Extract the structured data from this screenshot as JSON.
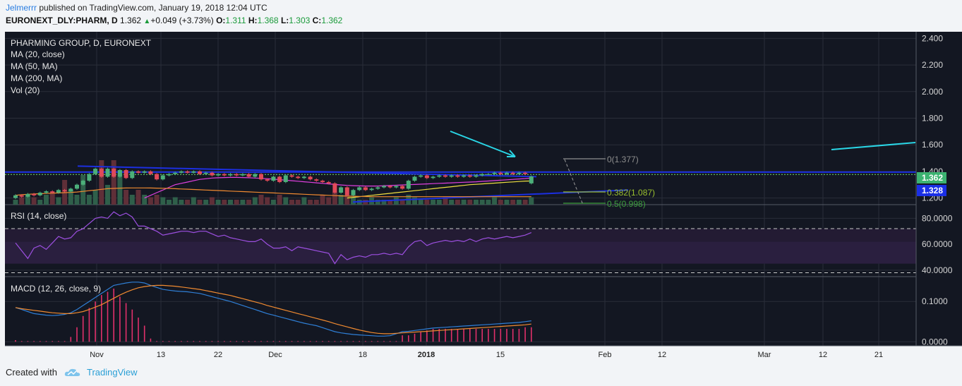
{
  "header": {
    "author": "Jelmerrr",
    "published_text": "published on TradingView.com, January 19, 2018 12:04 UTC",
    "symbol": "EURONEXT_DLY:PHARM, D",
    "last": "1.362",
    "change": "+0.049 (+3.73%)",
    "o_label": "O:",
    "o_value": "1.311",
    "h_label": "H:",
    "h_value": "1.368",
    "l_label": "L:",
    "l_value": "1.303",
    "c_label": "C:",
    "c_value": "1.362"
  },
  "main_legend": {
    "title": "PHARMING GROUP, D, EURONEXT",
    "items": [
      "MA (20, close)",
      "MA (50, MA)",
      "MA (200, MA)",
      "Vol (20)"
    ]
  },
  "rsi_legend": "RSI (14, close)",
  "macd_legend": "MACD (12, 26, close, 9)",
  "footer": {
    "created_with": "Created with",
    "brand": "TradingView"
  },
  "colors": {
    "background": "#131722",
    "grid": "#2a2e39",
    "up": "#4caf7a",
    "down": "#e04a5a",
    "ma20": "#f0e040",
    "ma50": "#e040e0",
    "ma200": "#f08a30",
    "trend_blue": "#1c2fe0",
    "cyan": "#2ad6e6",
    "rsi": "#9c4fe0",
    "rsi_band": "#2a1f3f",
    "macd": "#2f7fd6",
    "signal": "#f08a30",
    "hist": "#e0306a",
    "fib_0": "#8e8e8e",
    "fib_382": "#9abf2e",
    "fib_5": "#3d9e3d",
    "tag_last": "#3cb371",
    "tag_blue": "#1a2fe6"
  },
  "chart_data": [
    {
      "type": "candlestick",
      "title": "PHARMING GROUP, D, EURONEXT",
      "x_tick_labels": [
        "Nov",
        "13",
        "22",
        "Dec",
        "18",
        "2018",
        "15",
        "Feb",
        "12",
        "Mar",
        "12",
        "21"
      ],
      "y_tick_labels": [
        "2.400",
        "2.200",
        "2.000",
        "1.800",
        "1.600",
        "1.400",
        "1.200"
      ],
      "ylim": [
        1.15,
        2.45
      ],
      "y_ticks": [
        2.4,
        2.2,
        2.0,
        1.8,
        1.6,
        1.4,
        1.2
      ],
      "price_tags": [
        {
          "label": "1.362",
          "value": 1.362
        },
        {
          "label": "1.328",
          "value": 1.328
        }
      ],
      "fib_levels": [
        {
          "label": "0(1.377)",
          "value": 1.377
        },
        {
          "label": "0.382(1.087)",
          "value": 1.087
        },
        {
          "label": "0.5(0.998)",
          "value": 0.998
        }
      ],
      "candles": [
        {
          "o": 1.2,
          "c": 1.22
        },
        {
          "o": 1.22,
          "c": 1.21
        },
        {
          "o": 1.21,
          "c": 1.23
        },
        {
          "o": 1.23,
          "c": 1.22
        },
        {
          "o": 1.22,
          "c": 1.24
        },
        {
          "o": 1.24,
          "c": 1.25
        },
        {
          "o": 1.25,
          "c": 1.24
        },
        {
          "o": 1.24,
          "c": 1.26
        },
        {
          "o": 1.26,
          "c": 1.25
        },
        {
          "o": 1.25,
          "c": 1.27
        },
        {
          "o": 1.27,
          "c": 1.3
        },
        {
          "o": 1.3,
          "c": 1.33
        },
        {
          "o": 1.33,
          "c": 1.38
        },
        {
          "o": 1.38,
          "c": 1.42
        },
        {
          "o": 1.42,
          "c": 1.36
        },
        {
          "o": 1.36,
          "c": 1.42
        },
        {
          "o": 1.42,
          "c": 1.36
        },
        {
          "o": 1.36,
          "c": 1.41
        },
        {
          "o": 1.41,
          "c": 1.35
        },
        {
          "o": 1.35,
          "c": 1.4
        },
        {
          "o": 1.4,
          "c": 1.39
        },
        {
          "o": 1.39,
          "c": 1.4
        },
        {
          "o": 1.4,
          "c": 1.38
        },
        {
          "o": 1.38,
          "c": 1.34
        },
        {
          "o": 1.34,
          "c": 1.37
        },
        {
          "o": 1.37,
          "c": 1.38
        },
        {
          "o": 1.38,
          "c": 1.39
        },
        {
          "o": 1.39,
          "c": 1.4
        },
        {
          "o": 1.4,
          "c": 1.39
        },
        {
          "o": 1.39,
          "c": 1.4
        },
        {
          "o": 1.4,
          "c": 1.38
        },
        {
          "o": 1.38,
          "c": 1.39
        },
        {
          "o": 1.39,
          "c": 1.37
        },
        {
          "o": 1.37,
          "c": 1.38
        },
        {
          "o": 1.38,
          "c": 1.37
        },
        {
          "o": 1.37,
          "c": 1.38
        },
        {
          "o": 1.38,
          "c": 1.37
        },
        {
          "o": 1.37,
          "c": 1.38
        },
        {
          "o": 1.38,
          "c": 1.36
        },
        {
          "o": 1.36,
          "c": 1.38
        },
        {
          "o": 1.38,
          "c": 1.34
        },
        {
          "o": 1.34,
          "c": 1.33
        },
        {
          "o": 1.33,
          "c": 1.36
        },
        {
          "o": 1.36,
          "c": 1.32
        },
        {
          "o": 1.32,
          "c": 1.37
        },
        {
          "o": 1.37,
          "c": 1.36
        },
        {
          "o": 1.36,
          "c": 1.35
        },
        {
          "o": 1.35,
          "c": 1.36
        },
        {
          "o": 1.36,
          "c": 1.34
        },
        {
          "o": 1.34,
          "c": 1.33
        },
        {
          "o": 1.33,
          "c": 1.32
        },
        {
          "o": 1.32,
          "c": 1.31
        },
        {
          "o": 1.31,
          "c": 1.24
        },
        {
          "o": 1.24,
          "c": 1.28
        },
        {
          "o": 1.28,
          "c": 1.22
        },
        {
          "o": 1.22,
          "c": 1.26
        },
        {
          "o": 1.26,
          "c": 1.28
        },
        {
          "o": 1.28,
          "c": 1.26
        },
        {
          "o": 1.26,
          "c": 1.27
        },
        {
          "o": 1.27,
          "c": 1.28
        },
        {
          "o": 1.28,
          "c": 1.29
        },
        {
          "o": 1.29,
          "c": 1.28
        },
        {
          "o": 1.28,
          "c": 1.29
        },
        {
          "o": 1.29,
          "c": 1.27
        },
        {
          "o": 1.27,
          "c": 1.33
        },
        {
          "o": 1.33,
          "c": 1.36
        },
        {
          "o": 1.36,
          "c": 1.37
        },
        {
          "o": 1.37,
          "c": 1.35
        },
        {
          "o": 1.35,
          "c": 1.36
        },
        {
          "o": 1.36,
          "c": 1.37
        },
        {
          "o": 1.37,
          "c": 1.36
        },
        {
          "o": 1.36,
          "c": 1.37
        },
        {
          "o": 1.37,
          "c": 1.36
        },
        {
          "o": 1.36,
          "c": 1.37
        },
        {
          "o": 1.37,
          "c": 1.36
        },
        {
          "o": 1.36,
          "c": 1.37
        },
        {
          "o": 1.37,
          "c": 1.38
        },
        {
          "o": 1.38,
          "c": 1.38
        },
        {
          "o": 1.38,
          "c": 1.39
        },
        {
          "o": 1.39,
          "c": 1.38
        },
        {
          "o": 1.38,
          "c": 1.39
        },
        {
          "o": 1.39,
          "c": 1.38
        },
        {
          "o": 1.38,
          "c": 1.39
        },
        {
          "o": 1.39,
          "c": 1.38
        },
        {
          "o": 1.31,
          "c": 1.362
        }
      ],
      "series": [
        {
          "name": "MA (20, close)",
          "values": [
            null,
            null,
            null,
            null,
            null,
            null,
            null,
            null,
            null,
            null,
            null,
            null,
            null,
            null,
            null,
            null,
            null,
            null,
            null,
            null,
            null,
            null,
            null,
            null,
            null,
            null,
            null,
            null,
            null,
            null,
            null,
            null,
            null,
            null,
            null,
            null,
            null,
            null,
            null,
            null,
            null,
            null,
            null,
            null,
            null,
            null,
            null,
            null,
            null,
            null,
            null,
            null,
            null,
            null,
            1.2,
            1.205,
            1.21,
            1.215,
            1.22,
            1.225,
            1.23,
            1.235,
            1.24,
            1.245,
            1.25,
            1.255,
            1.26,
            1.265,
            1.27,
            1.275,
            1.28,
            1.285,
            1.29,
            1.295,
            1.3,
            1.303,
            1.306,
            1.309,
            1.312,
            1.315,
            1.318,
            1.321,
            1.324,
            1.327,
            1.328
          ]
        },
        {
          "name": "MA (50, MA)",
          "values": [
            null,
            null,
            null,
            null,
            null,
            null,
            null,
            null,
            null,
            null,
            null,
            null,
            null,
            null,
            null,
            null,
            null,
            null,
            null,
            null,
            null,
            1.2,
            1.22,
            1.24,
            1.26,
            1.28,
            1.3,
            1.31,
            1.32,
            1.33,
            1.34,
            1.345,
            1.35,
            1.352,
            1.354,
            1.355,
            1.355,
            1.354,
            1.352,
            1.35,
            1.348,
            1.345,
            1.342,
            1.338,
            1.334,
            1.33,
            1.326,
            1.322,
            1.318,
            1.314,
            1.31,
            1.306,
            1.302,
            1.298,
            1.295,
            1.293,
            1.291,
            1.29,
            1.29,
            1.29,
            1.292,
            1.294,
            1.296,
            1.298,
            1.3,
            1.302,
            1.304,
            1.306,
            1.308,
            1.31,
            1.312,
            1.314,
            1.316,
            1.318,
            1.32,
            1.322,
            1.325,
            1.328,
            1.331,
            1.334,
            1.337,
            1.34,
            1.343,
            1.346,
            1.35
          ]
        },
        {
          "name": "MA (200, MA)",
          "values": [
            1.22,
            1.225,
            1.228,
            1.23,
            1.232,
            1.234,
            1.236,
            1.238,
            1.24,
            1.242,
            1.245,
            1.25,
            1.255,
            1.26,
            1.265,
            1.27,
            1.272,
            1.274,
            1.275,
            1.276,
            1.276,
            1.276,
            1.275,
            1.274,
            1.273,
            1.272,
            1.27,
            1.268,
            1.266,
            1.264,
            1.262,
            1.26,
            1.258,
            1.256,
            1.254,
            1.252,
            1.25,
            1.248,
            1.246,
            1.244,
            1.242,
            1.24,
            1.238,
            1.236,
            1.234,
            1.232,
            1.23,
            1.228,
            1.226,
            1.224,
            1.222,
            1.22,
            1.218,
            1.216,
            1.214,
            1.213,
            1.212,
            1.211,
            1.21,
            1.21,
            1.21,
            1.21,
            1.21,
            1.21,
            1.21,
            1.21,
            1.21,
            1.21,
            1.21,
            1.21,
            1.21,
            1.21,
            1.21,
            1.21,
            1.21,
            1.21,
            1.21,
            1.21,
            1.21,
            1.21,
            1.21,
            1.21,
            1.21,
            1.21,
            1.21
          ]
        },
        {
          "name": "Vol (20)",
          "values": [
            0.1,
            0.15,
            0.2,
            0.15,
            0.1,
            0.2,
            0.25,
            0.15,
            0.5,
            0.3,
            0.2,
            0.6,
            0.2,
            0.3,
            0.9,
            0.4,
            0.9,
            0.7,
            0.3,
            0.2,
            0.3,
            0.2,
            0.15,
            0.2,
            0.15,
            0.1,
            0.15,
            0.1,
            0.1,
            0.15,
            0.1,
            0.1,
            0.15,
            0.1,
            0.1,
            0.1,
            0.1,
            0.1,
            0.1,
            0.15,
            0.2,
            0.15,
            0.1,
            0.2,
            0.15,
            0.1,
            0.1,
            0.15,
            0.1,
            0.1,
            0.2,
            0.15,
            0.25,
            0.2,
            0.2,
            0.15,
            0.1,
            0.1,
            0.15,
            0.1,
            0.1,
            0.1,
            0.15,
            0.1,
            0.2,
            0.15,
            0.1,
            0.1,
            0.1,
            0.1,
            0.15,
            0.1,
            0.1,
            0.1,
            0.1,
            0.1,
            0.1,
            0.1,
            0.15,
            0.1,
            0.1,
            0.1,
            0.1,
            0.1,
            0.15
          ]
        }
      ]
    },
    {
      "type": "line",
      "title": "RSI (14, close)",
      "y_tick_labels": [
        "80.0000",
        "60.0000",
        "40.0000"
      ],
      "y_ticks": [
        80,
        60,
        40
      ],
      "ylim": [
        35,
        90
      ],
      "band": [
        45,
        62
      ],
      "dashed_levels": [
        72,
        38
      ],
      "series": [
        {
          "name": "RSI (14, close)",
          "values": [
            61,
            55,
            49,
            57,
            59,
            56,
            61,
            66,
            64,
            65,
            70,
            72,
            76,
            80,
            81,
            80,
            85,
            82,
            84,
            81,
            74,
            74,
            72,
            70,
            67,
            68,
            69,
            70,
            70,
            69,
            70,
            70,
            68,
            66,
            67,
            65,
            64,
            63,
            62,
            62,
            64,
            60,
            57,
            57,
            58,
            55,
            58,
            57,
            56,
            55,
            54,
            53,
            45,
            52,
            48,
            50,
            51,
            50,
            52,
            52,
            53,
            52,
            53,
            52,
            58,
            62,
            63,
            59,
            61,
            62,
            63,
            62,
            63,
            62,
            64,
            62,
            64,
            65,
            64,
            65,
            66,
            65,
            66,
            67,
            69
          ]
        }
      ]
    },
    {
      "type": "line",
      "title": "MACD (12, 26, close, 9)",
      "y_tick_labels": [
        "0.1000",
        "0.0000"
      ],
      "y_ticks": [
        0.1,
        0
      ],
      "ylim": [
        -0.01,
        0.16
      ],
      "series": [
        {
          "name": "MACD",
          "values": [
            0.085,
            0.08,
            0.075,
            0.07,
            0.068,
            0.066,
            0.065,
            0.066,
            0.068,
            0.072,
            0.08,
            0.09,
            0.1,
            0.11,
            0.12,
            0.13,
            0.14,
            0.143,
            0.146,
            0.148,
            0.148,
            0.146,
            0.14,
            0.135,
            0.13,
            0.128,
            0.126,
            0.125,
            0.124,
            0.122,
            0.12,
            0.116,
            0.112,
            0.108,
            0.104,
            0.1,
            0.095,
            0.09,
            0.085,
            0.08,
            0.075,
            0.07,
            0.066,
            0.062,
            0.058,
            0.054,
            0.05,
            0.046,
            0.043,
            0.04,
            0.035,
            0.03,
            0.025,
            0.022,
            0.02,
            0.018,
            0.017,
            0.016,
            0.015,
            0.014,
            0.014,
            0.015,
            0.02,
            0.025,
            0.026,
            0.028,
            0.03,
            0.032,
            0.034,
            0.035,
            0.036,
            0.037,
            0.038,
            0.039,
            0.04,
            0.041,
            0.042,
            0.043,
            0.044,
            0.045,
            0.046,
            0.047,
            0.048,
            0.05,
            0.052
          ]
        },
        {
          "name": "Signal",
          "values": [
            0.085,
            0.082,
            0.08,
            0.078,
            0.076,
            0.074,
            0.072,
            0.071,
            0.07,
            0.07,
            0.072,
            0.075,
            0.08,
            0.086,
            0.092,
            0.1,
            0.108,
            0.116,
            0.123,
            0.129,
            0.134,
            0.137,
            0.139,
            0.14,
            0.14,
            0.139,
            0.138,
            0.136,
            0.134,
            0.132,
            0.13,
            0.127,
            0.124,
            0.121,
            0.118,
            0.115,
            0.111,
            0.107,
            0.103,
            0.099,
            0.095,
            0.09,
            0.086,
            0.082,
            0.078,
            0.074,
            0.07,
            0.066,
            0.062,
            0.058,
            0.054,
            0.05,
            0.045,
            0.041,
            0.037,
            0.033,
            0.029,
            0.026,
            0.023,
            0.021,
            0.02,
            0.02,
            0.021,
            0.022,
            0.023,
            0.024,
            0.025,
            0.026,
            0.027,
            0.028,
            0.029,
            0.03,
            0.031,
            0.032,
            0.033,
            0.034,
            0.035,
            0.036,
            0.037,
            0.038,
            0.039,
            0.04,
            0.041,
            0.042,
            0.044
          ]
        }
      ]
    }
  ]
}
